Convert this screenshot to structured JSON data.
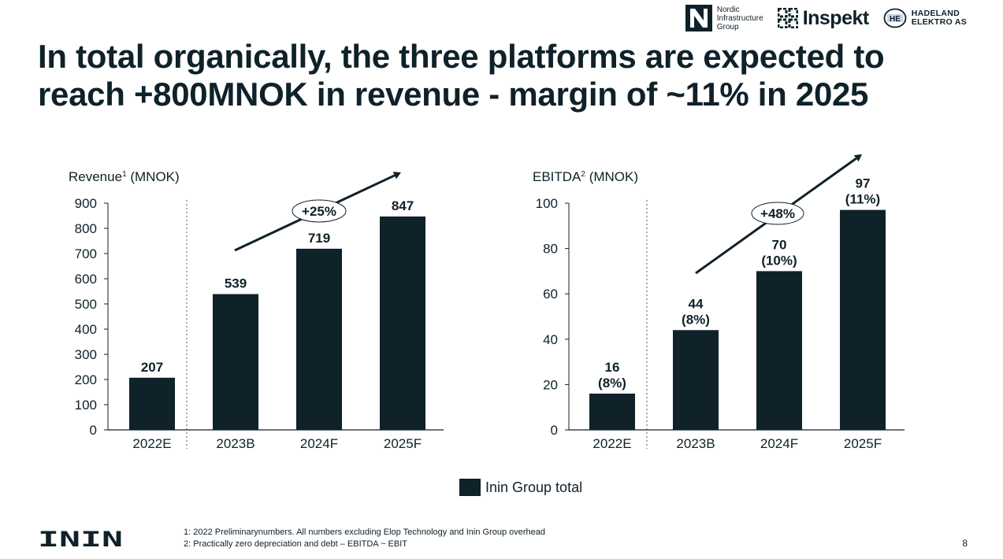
{
  "logos": {
    "nordic": {
      "lines": [
        "Nordic",
        "Infrastructure",
        "Group"
      ]
    },
    "inspekt": {
      "text": "Inspekt"
    },
    "hadeland": {
      "mark": "HE",
      "lines": [
        "HADELAND",
        "ELEKTRO AS"
      ]
    }
  },
  "title": "In total organically, the three platforms are expected to reach +800MNOK in revenue - margin of ~11% in 2025",
  "colors": {
    "bar": "#0f2129",
    "text": "#0f2129",
    "divider": "#555555"
  },
  "chart_data": [
    {
      "type": "bar",
      "title": "Revenue",
      "title_sup": "1",
      "title_unit": "(MNOK)",
      "categories": [
        "2022E",
        "2023B",
        "2024F",
        "2025F"
      ],
      "values": [
        207,
        539,
        719,
        847
      ],
      "value_labels": [
        "207",
        "539",
        "719",
        "847"
      ],
      "ylim": [
        0,
        900
      ],
      "yticks": [
        0,
        100,
        200,
        300,
        400,
        500,
        600,
        700,
        800,
        900
      ],
      "growth_label": "+25%",
      "divider_after_category": "2022E",
      "grid": false
    },
    {
      "type": "bar",
      "title": "EBITDA",
      "title_sup": "2",
      "title_unit": "(MNOK)",
      "categories": [
        "2022E",
        "2023B",
        "2024F",
        "2025F"
      ],
      "values": [
        16,
        44,
        70,
        97
      ],
      "value_labels": [
        "16",
        "44",
        "70",
        "97"
      ],
      "margin_labels": [
        "(8%)",
        "(8%)",
        "(10%)",
        "(11%)"
      ],
      "ylim": [
        0,
        100
      ],
      "yticks": [
        0,
        20,
        40,
        60,
        80,
        100
      ],
      "growth_label": "+48%",
      "divider_after_category": "2022E",
      "grid": false
    }
  ],
  "legend": {
    "label": "Inin Group total"
  },
  "footnotes": [
    "1: 2022 Preliminarynumbers. All numbers excluding Elop Technology and Inin Group overhead",
    "2: Practically zero depreciation and debt – EBITDA ~ EBIT"
  ],
  "brand": {
    "text": "ININ"
  },
  "page_number": "8"
}
